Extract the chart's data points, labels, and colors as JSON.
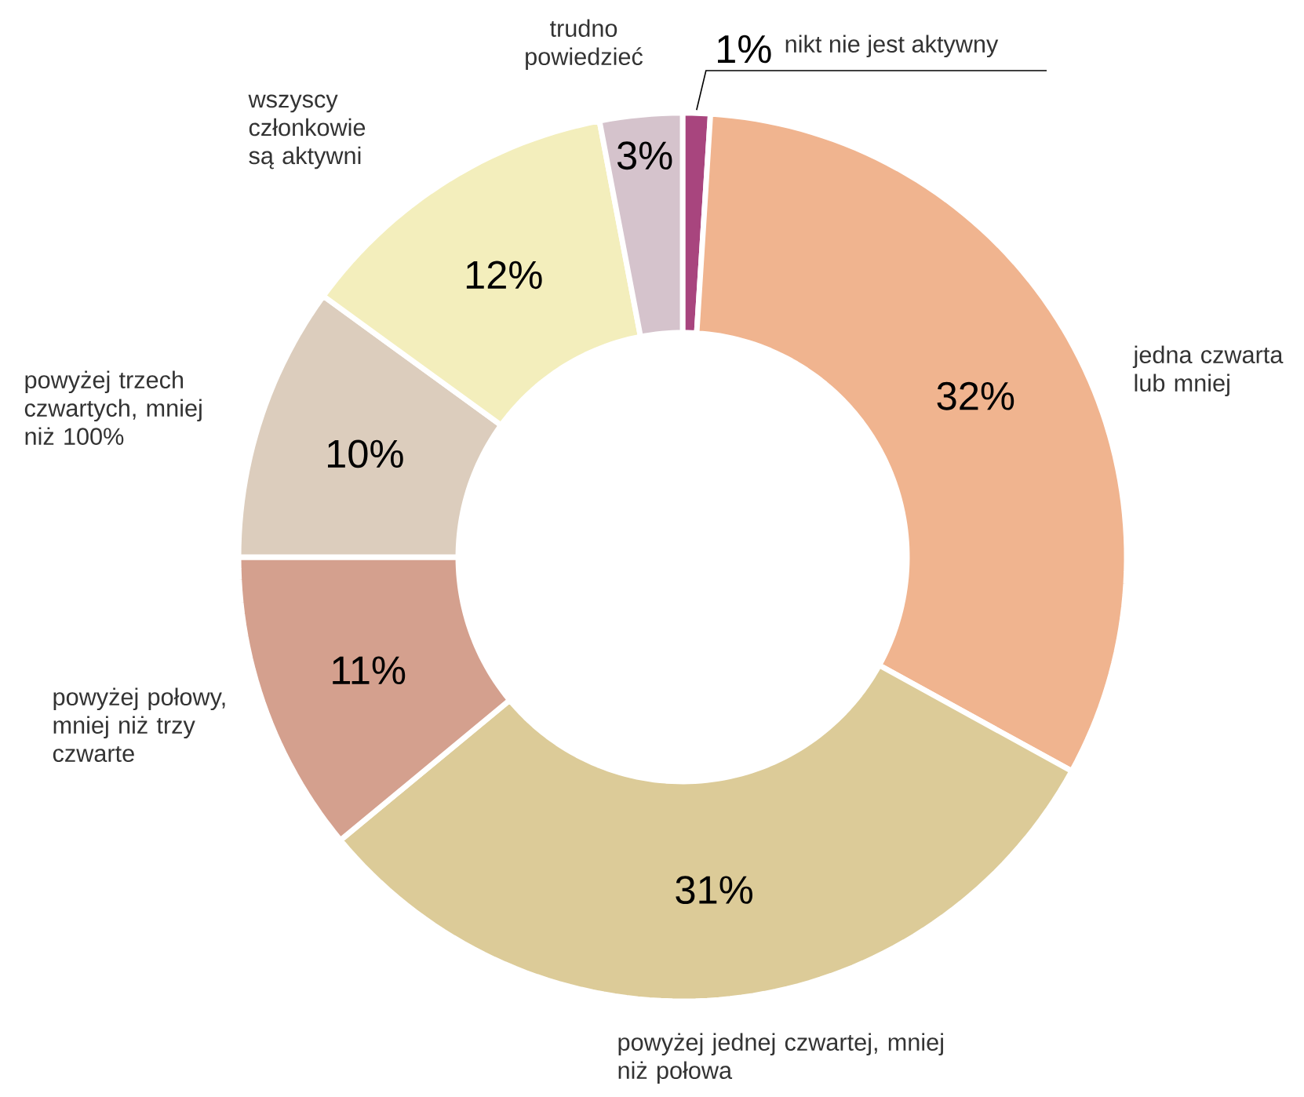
{
  "chart_data": {
    "type": "donut",
    "categories": [
      "nikt nie jest aktywny",
      "jedna czwarta lub mniej",
      "powyżej jednej czwartej, mniej niż połowa",
      "powyżej połowy, mniej niż trzy czwarte",
      "powyżej trzech czwartych, mniej niż 100%",
      "wszyscy członkowie są aktywni",
      "trudno powiedzieć"
    ],
    "values": [
      1,
      32,
      31,
      11,
      10,
      12,
      3
    ],
    "value_labels": [
      "1%",
      "32%",
      "31%",
      "11%",
      "10%",
      "12%",
      "3%"
    ],
    "colors": [
      "#a8457e",
      "#f0b48f",
      "#dccb98",
      "#d4a08e",
      "#dccdbd",
      "#f3eebc",
      "#d5c3cc"
    ]
  }
}
